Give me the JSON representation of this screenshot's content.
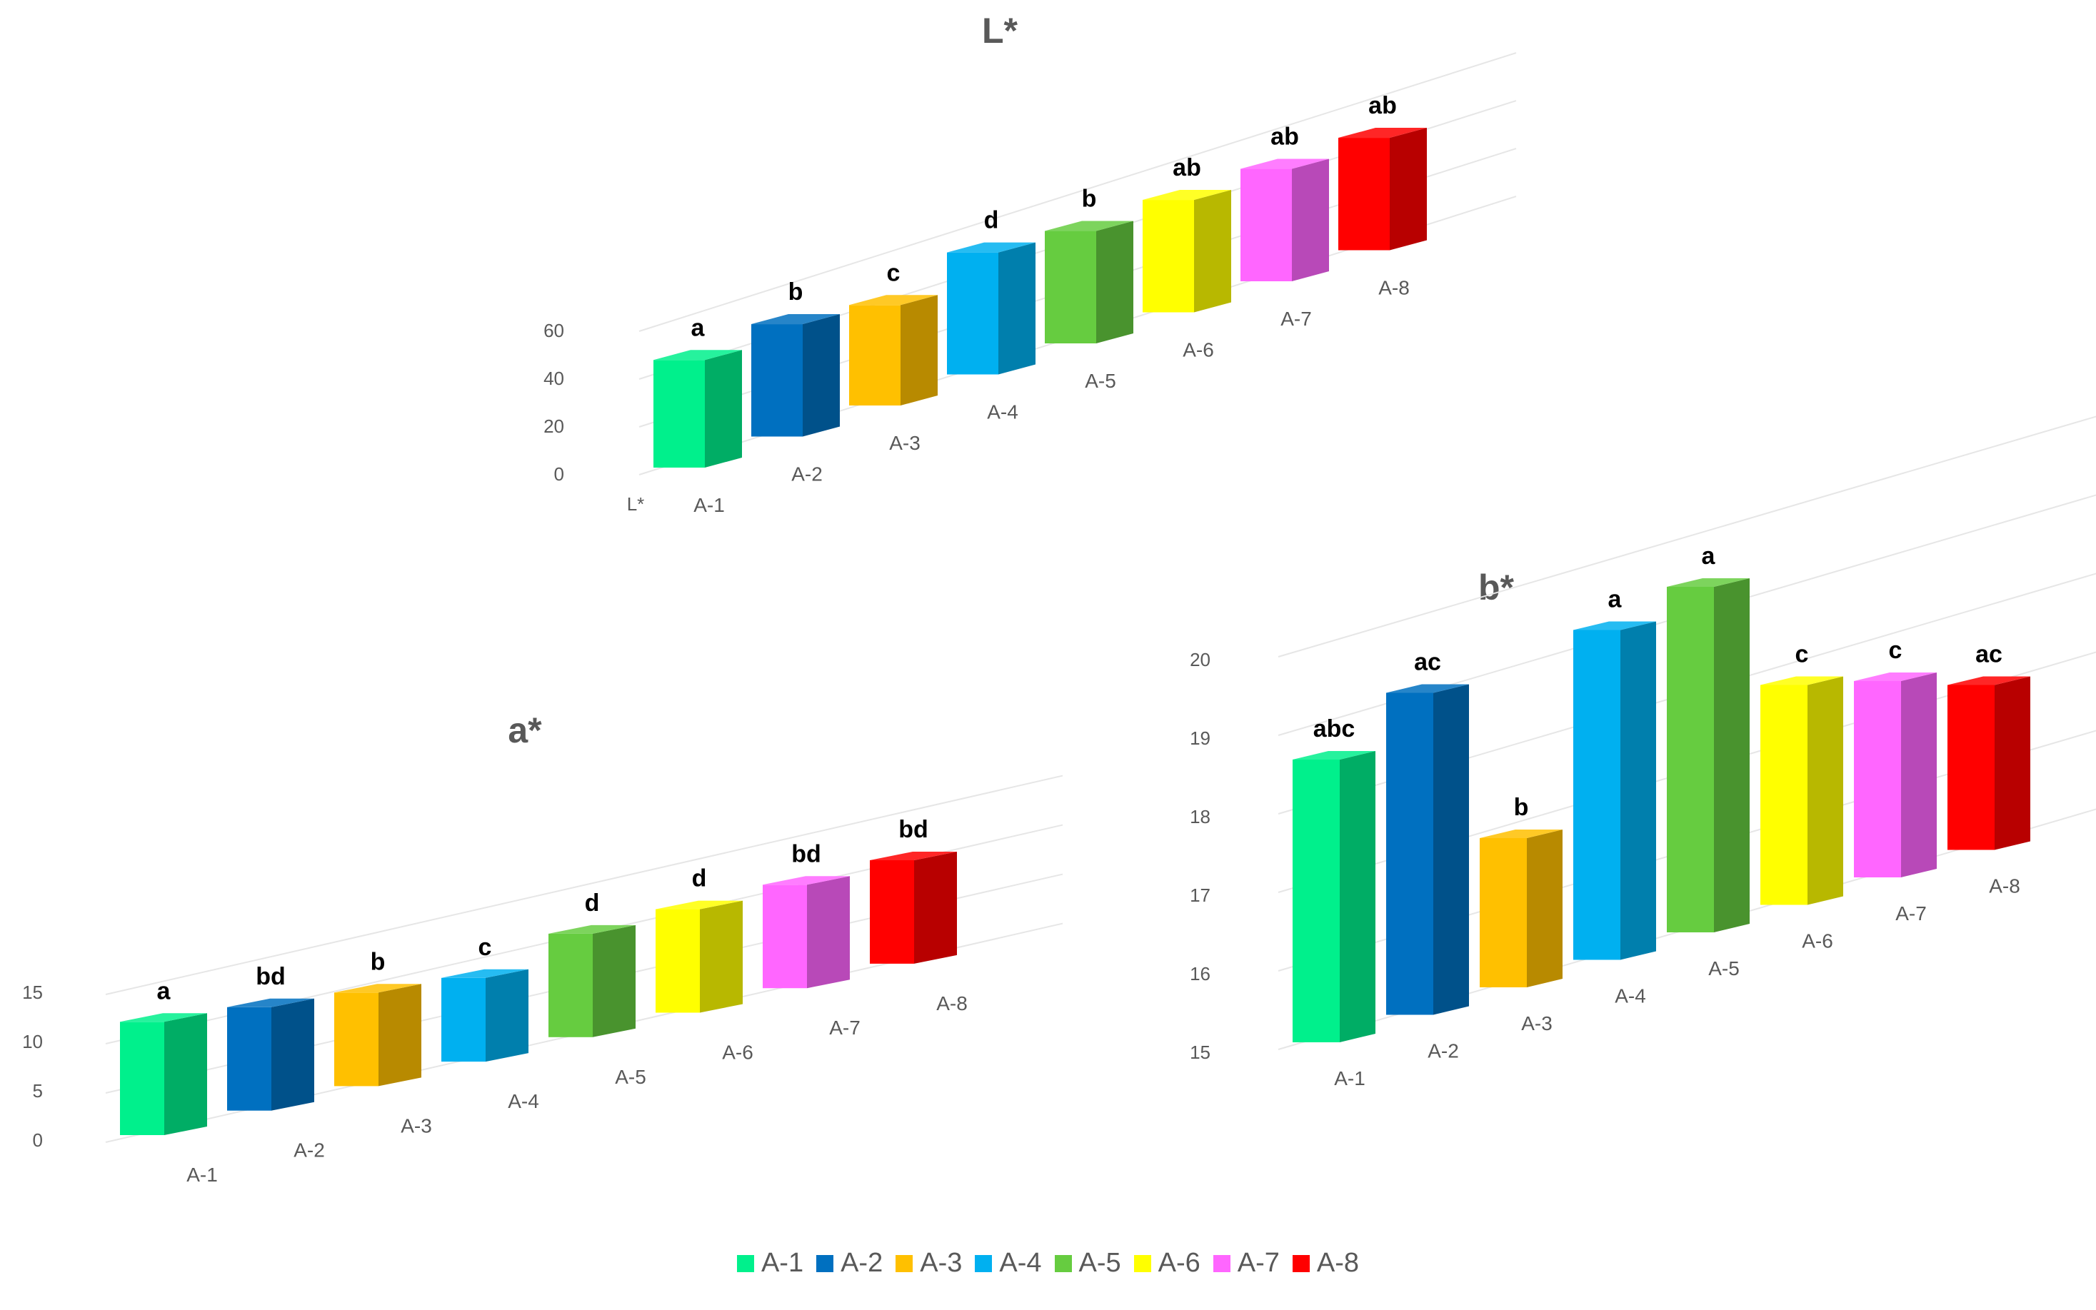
{
  "colors": {
    "A-1": "#00f08c",
    "A-2": "#0070c0",
    "A-3": "#ffc000",
    "A-4": "#00b0f0",
    "A-5": "#66cc40",
    "A-6": "#ffff00",
    "A-7": "#ff66ff",
    "A-8": "#ff0000"
  },
  "legend": [
    "A-1",
    "A-2",
    "A-3",
    "A-4",
    "A-5",
    "A-6",
    "A-7",
    "A-8"
  ],
  "chart_data": [
    {
      "type": "bar",
      "title": "L*",
      "depth_label": "L*",
      "categories": [
        "A-1",
        "A-2",
        "A-3",
        "A-4",
        "A-5",
        "A-6",
        "A-7",
        "A-8"
      ],
      "values": [
        45,
        47,
        42,
        51,
        47,
        47,
        47,
        47
      ],
      "significance": [
        "a",
        "b",
        "c",
        "d",
        "b",
        "ab",
        "ab",
        "ab"
      ],
      "ylim": [
        0,
        60
      ],
      "yticks": [
        0,
        20,
        40,
        60
      ],
      "grid": true,
      "legend_position": "bottom"
    },
    {
      "type": "bar",
      "title": "a*",
      "categories": [
        "A-1",
        "A-2",
        "A-3",
        "A-4",
        "A-5",
        "A-6",
        "A-7",
        "A-8"
      ],
      "values": [
        11.5,
        10.5,
        9.5,
        8.5,
        10.5,
        10.5,
        10.5,
        10.5
      ],
      "significance": [
        "a",
        "bd",
        "b",
        "c",
        "d",
        "d",
        "bd",
        "bd"
      ],
      "ylim": [
        0,
        15
      ],
      "yticks": [
        0,
        5,
        10,
        15
      ],
      "grid": true,
      "legend_position": "bottom"
    },
    {
      "type": "bar",
      "title": "b*",
      "categories": [
        "A-1",
        "A-2",
        "A-3",
        "A-4",
        "A-5",
        "A-6",
        "A-7",
        "A-8"
      ],
      "values": [
        18.6,
        19.1,
        16.9,
        19.2,
        19.4,
        17.8,
        17.5,
        17.1
      ],
      "significance": [
        "abc",
        "ac",
        "b",
        "a",
        "a",
        "c",
        "c",
        "ac"
      ],
      "ylim": [
        15,
        20
      ],
      "yticks": [
        15,
        16,
        17,
        18,
        19,
        20
      ],
      "grid": true,
      "legend_position": "bottom"
    }
  ]
}
